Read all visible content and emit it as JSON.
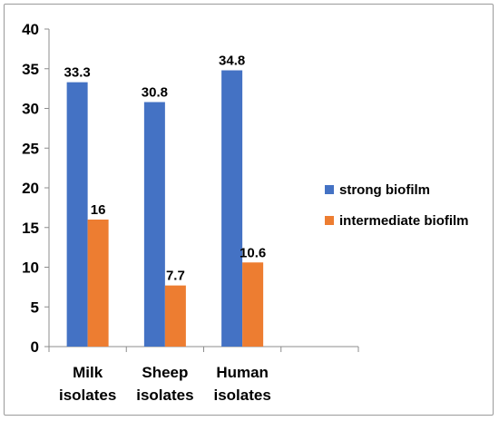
{
  "chart_data": {
    "type": "bar",
    "categories": [
      [
        "Milk",
        "isolates"
      ],
      [
        "Sheep",
        "isolates"
      ],
      [
        "Human",
        "isolates"
      ],
      [
        "",
        ""
      ]
    ],
    "series": [
      {
        "name": "strong biofilm",
        "values": [
          33.3,
          30.8,
          34.8,
          null
        ],
        "labels": [
          "33.3",
          "30.8",
          "34.8",
          ""
        ],
        "color": "#4472C4"
      },
      {
        "name": "intermediate biofilm",
        "values": [
          16,
          7.7,
          10.6,
          null
        ],
        "labels": [
          "16",
          "7.7",
          "10.6",
          ""
        ],
        "color": "#ED7D31"
      }
    ],
    "ylim": [
      0,
      40
    ],
    "yticks": [
      "0",
      "5",
      "10",
      "15",
      "20",
      "25",
      "30",
      "35",
      "40"
    ],
    "title": "",
    "xlabel": "",
    "ylabel": "",
    "legend_position": "right",
    "grid": false
  }
}
